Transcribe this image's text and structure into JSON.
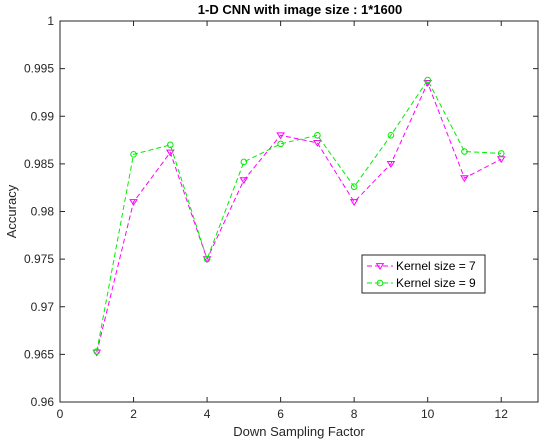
{
  "chart_data": {
    "type": "line",
    "title": "1-D CNN with image size : 1*1600",
    "xlabel": "Down Sampling Factor",
    "ylabel": "Accuracy",
    "xlim": [
      0,
      13
    ],
    "ylim": [
      0.96,
      1
    ],
    "xticks": [
      "0",
      "2",
      "4",
      "6",
      "8",
      "10",
      "12"
    ],
    "yticks": [
      "0.96",
      "0.965",
      "0.97",
      "0.975",
      "0.98",
      "0.985",
      "0.99",
      "0.995",
      "1"
    ],
    "grid": false,
    "legend_position": "center-right",
    "x": [
      1,
      2,
      3,
      4,
      5,
      6,
      7,
      8,
      9,
      10,
      11,
      12
    ],
    "series": [
      {
        "name": "Kernel size = 7",
        "color": "#ff00ff",
        "marker": "triangle-down",
        "line_style": "dashed",
        "values": [
          0.9652,
          0.981,
          0.9862,
          0.975,
          0.9833,
          0.988,
          0.9872,
          0.981,
          0.985,
          0.9935,
          0.9835,
          0.9855
        ]
      },
      {
        "name": "Kernel size = 9",
        "color": "#00ee00",
        "marker": "circle",
        "line_style": "dashed",
        "values": [
          0.9653,
          0.986,
          0.987,
          0.975,
          0.9852,
          0.9871,
          0.988,
          0.9826,
          0.988,
          0.9938,
          0.9863,
          0.9861
        ]
      }
    ]
  }
}
